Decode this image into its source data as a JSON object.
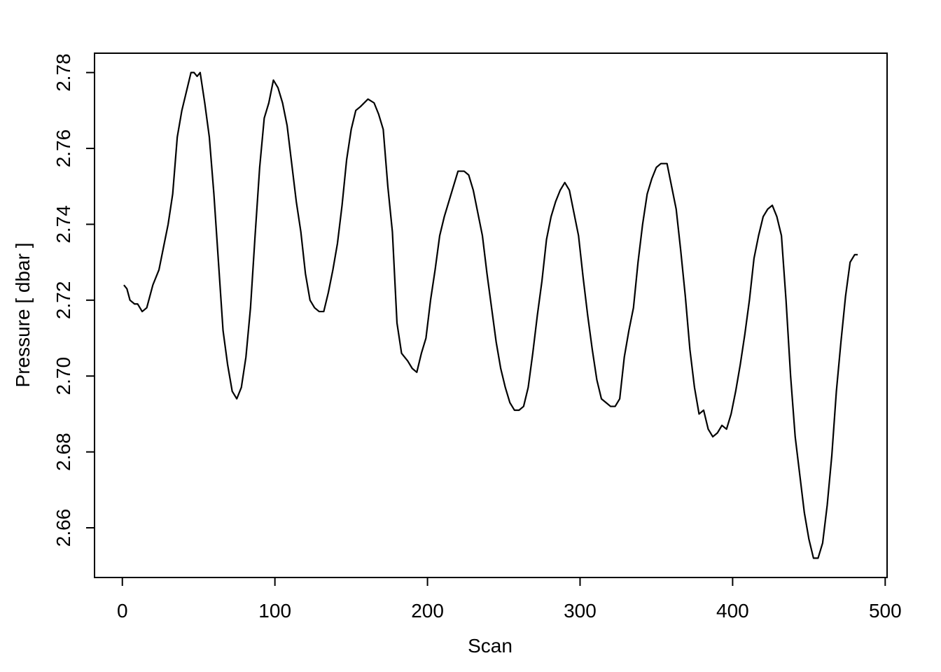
{
  "chart_data": {
    "type": "line",
    "xlabel": "Scan",
    "ylabel": "Pressure [ dbar ]",
    "color": "#000000",
    "x": [
      1,
      3,
      5,
      8,
      10,
      13,
      16,
      20,
      24,
      27,
      30,
      33,
      36,
      39,
      42,
      45,
      47,
      49,
      51,
      54,
      57,
      60,
      63,
      66,
      69,
      72,
      75,
      78,
      81,
      84,
      87,
      90,
      93,
      96,
      99,
      102,
      105,
      108,
      111,
      114,
      117,
      120,
      123,
      126,
      129,
      132,
      135,
      138,
      141,
      144,
      147,
      150,
      153,
      156,
      161,
      165,
      168,
      171,
      174,
      177,
      180,
      183,
      187,
      190,
      193,
      196,
      199,
      202,
      205,
      208,
      211,
      214,
      217,
      220,
      224,
      227,
      230,
      233,
      236,
      239,
      242,
      245,
      248,
      251,
      254,
      257,
      260,
      263,
      266,
      269,
      272,
      275,
      278,
      281,
      284,
      287,
      290,
      293,
      296,
      299,
      302,
      305,
      308,
      311,
      314,
      317,
      320,
      323,
      326,
      329,
      332,
      335,
      338,
      341,
      344,
      347,
      350,
      353,
      357,
      360,
      363,
      366,
      369,
      372,
      375,
      378,
      381,
      384,
      387,
      390,
      393,
      396,
      399,
      402,
      405,
      408,
      411,
      414,
      417,
      420,
      423,
      426,
      429,
      432,
      435,
      438,
      441,
      444,
      447,
      450,
      453,
      456,
      459,
      462,
      465,
      468,
      471,
      474,
      477,
      480,
      482
    ],
    "values": [
      2.724,
      2.723,
      2.72,
      2.719,
      2.719,
      2.717,
      2.718,
      2.724,
      2.728,
      2.734,
      2.74,
      2.748,
      2.763,
      2.77,
      2.775,
      2.78,
      2.78,
      2.779,
      2.78,
      2.772,
      2.763,
      2.748,
      2.73,
      2.712,
      2.703,
      2.696,
      2.694,
      2.697,
      2.705,
      2.718,
      2.737,
      2.755,
      2.768,
      2.772,
      2.778,
      2.776,
      2.772,
      2.766,
      2.756,
      2.746,
      2.738,
      2.727,
      2.72,
      2.718,
      2.717,
      2.717,
      2.722,
      2.728,
      2.735,
      2.745,
      2.757,
      2.765,
      2.77,
      2.771,
      2.773,
      2.772,
      2.769,
      2.765,
      2.75,
      2.738,
      2.714,
      2.706,
      2.704,
      2.702,
      2.701,
      2.706,
      2.71,
      2.72,
      2.728,
      2.737,
      2.742,
      2.746,
      2.75,
      2.754,
      2.754,
      2.753,
      2.749,
      2.743,
      2.737,
      2.727,
      2.718,
      2.709,
      2.702,
      2.697,
      2.693,
      2.691,
      2.691,
      2.692,
      2.697,
      2.706,
      2.716,
      2.725,
      2.736,
      2.742,
      2.746,
      2.749,
      2.751,
      2.749,
      2.743,
      2.737,
      2.726,
      2.716,
      2.707,
      2.699,
      2.694,
      2.693,
      2.692,
      2.692,
      2.694,
      2.705,
      2.712,
      2.718,
      2.73,
      2.74,
      2.748,
      2.752,
      2.755,
      2.756,
      2.756,
      2.75,
      2.744,
      2.733,
      2.721,
      2.707,
      2.697,
      2.69,
      2.691,
      2.686,
      2.684,
      2.685,
      2.687,
      2.686,
      2.69,
      2.696,
      2.703,
      2.711,
      2.72,
      2.731,
      2.737,
      2.742,
      2.744,
      2.745,
      2.742,
      2.737,
      2.72,
      2.7,
      2.684,
      2.674,
      2.664,
      2.657,
      2.652,
      2.652,
      2.656,
      2.666,
      2.679,
      2.696,
      2.709,
      2.721,
      2.73,
      2.732,
      2.732
    ],
    "xlim": [
      -18.24,
      501.24
    ],
    "ylim": [
      2.6469,
      2.7851
    ],
    "xticks": [
      0,
      100,
      200,
      300,
      400,
      500
    ],
    "yticks": [
      2.66,
      2.68,
      {
        "value": 2.7,
        "label": "2.70"
      },
      2.72,
      2.74,
      2.76,
      2.78
    ]
  }
}
